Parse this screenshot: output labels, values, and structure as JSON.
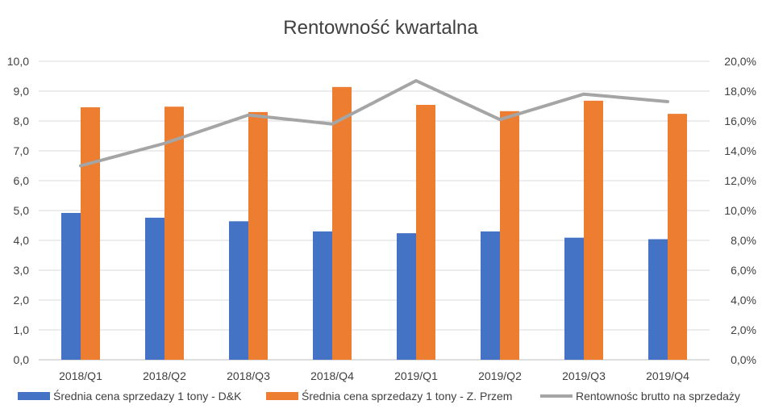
{
  "chart_data": {
    "type": "bar",
    "title": "Rentowność kwartalna",
    "categories": [
      "2018/Q1",
      "2018/Q2",
      "2018/Q3",
      "2018/Q4",
      "2019/Q1",
      "2019/Q2",
      "2019/Q3",
      "2019/Q4"
    ],
    "series": [
      {
        "name": "Średnia cena sprzedazy 1 tony - D&K",
        "type": "bar",
        "axis": "left",
        "color": "#4472C4",
        "values": [
          4.92,
          4.76,
          4.64,
          4.3,
          4.24,
          4.3,
          4.09,
          4.04
        ]
      },
      {
        "name": "Średnia cena sprzedazy 1 tony - Z. Przem",
        "type": "bar",
        "axis": "left",
        "color": "#ED7D31",
        "values": [
          8.46,
          8.48,
          8.3,
          9.14,
          8.54,
          8.33,
          8.68,
          8.24
        ]
      },
      {
        "name": "Rentownośc brutto na sprzedaży",
        "type": "line",
        "axis": "right",
        "color": "#A5A5A5",
        "values": [
          13.0,
          14.5,
          16.4,
          15.8,
          18.7,
          16.1,
          17.8,
          17.3
        ]
      }
    ],
    "y_left": {
      "min": 0,
      "max": 10,
      "step": 1,
      "tick_labels": [
        "0,0",
        "1,0",
        "2,0",
        "3,0",
        "4,0",
        "5,0",
        "6,0",
        "7,0",
        "8,0",
        "9,0",
        "10,0"
      ]
    },
    "y_right": {
      "min": 0,
      "max": 20,
      "step": 2,
      "tick_labels": [
        "0,0%",
        "2,0%",
        "4,0%",
        "6,0%",
        "8,0%",
        "10,0%",
        "12,0%",
        "14,0%",
        "16,0%",
        "18,0%",
        "20,0%"
      ]
    },
    "grid": true,
    "gridline_color": "#D9D9D9",
    "legend_position": "bottom"
  }
}
